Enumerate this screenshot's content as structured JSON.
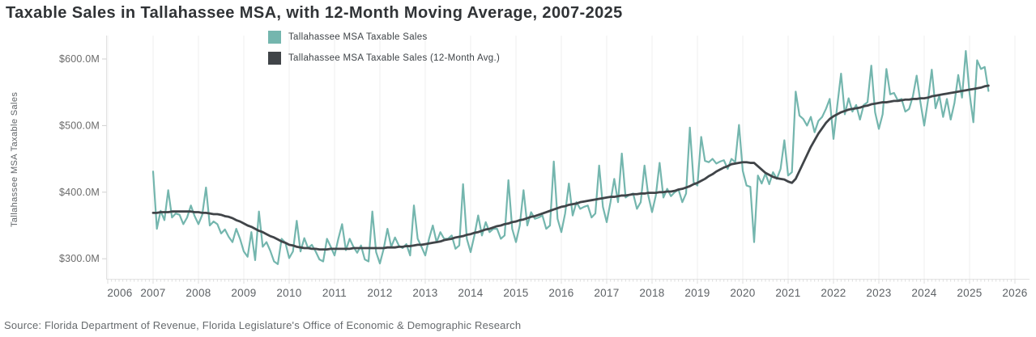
{
  "title": "Taxable Sales in Tallahassee MSA, with 12-Month Moving Average, 2007-2025",
  "source": "Source: Florida Department of Revenue, Florida Legislature's Office of Economic & Demographic Research",
  "legend": {
    "items": [
      {
        "label": "Tallahassee MSA Taxable Sales",
        "color": "#74b6ae"
      },
      {
        "label": "Tallahassee MSA Taxable Sales (12-Month Avg.)",
        "color": "#404448"
      }
    ]
  },
  "y_axis_title": "Tallahassee MSA Taxable Sales",
  "colors": {
    "gridline": "#efefef",
    "axis_line": "#e2e2e2",
    "minor_tick": "#dcdcdc",
    "y_tick": "#cfcfcf",
    "x_label": "#5d6165",
    "y_label": "#6b6b6b"
  },
  "chart_data": {
    "type": "line",
    "title": "Taxable Sales in Tallahassee MSA, with 12-Month Moving Average, 2007-2025",
    "xlabel": "",
    "ylabel": "Tallahassee MSA Taxable Sales",
    "grid": "vertical-only",
    "legend_position": "top-center",
    "x_axis": {
      "start_year": 2006,
      "end_year": 2026,
      "tick_years": [
        2006,
        2007,
        2008,
        2009,
        2010,
        2011,
        2012,
        2013,
        2014,
        2015,
        2016,
        2017,
        2018,
        2019,
        2020,
        2021,
        2022,
        2023,
        2024,
        2025,
        2026
      ],
      "minor_ticks": "monthly"
    },
    "y_axis": {
      "units": "USD millions",
      "ticks": [
        {
          "value": 300,
          "label": "$300.0M"
        },
        {
          "value": 400,
          "label": "$400.0M"
        },
        {
          "value": 500,
          "label": "$500.0M"
        },
        {
          "value": 600,
          "label": "$600.0M"
        }
      ]
    },
    "ylim": [
      270,
      628
    ],
    "series": [
      {
        "name": "Tallahassee MSA Taxable Sales",
        "color": "#74b6ae",
        "stroke_width": 2.2,
        "start_year": 2007,
        "start_month": 1,
        "interval": "monthly",
        "values": [
          431,
          345,
          372,
          358,
          403,
          362,
          368,
          366,
          352,
          362,
          380,
          364,
          352,
          366,
          407,
          350,
          356,
          352,
          338,
          344,
          333,
          325,
          345,
          330,
          311,
          303,
          340,
          298,
          371,
          318,
          325,
          312,
          296,
          292,
          330,
          324,
          301,
          311,
          357,
          311,
          331,
          316,
          321,
          311,
          299,
          296,
          330,
          318,
          305,
          330,
          352,
          313,
          330,
          318,
          309,
          320,
          299,
          296,
          371,
          310,
          293,
          315,
          345,
          318,
          332,
          320,
          316,
          322,
          305,
          380,
          330,
          318,
          305,
          330,
          350,
          325,
          340,
          330,
          330,
          335,
          315,
          320,
          412,
          330,
          310,
          335,
          365,
          335,
          355,
          340,
          345,
          345,
          330,
          335,
          418,
          345,
          325,
          350,
          403,
          350,
          370,
          360,
          362,
          365,
          345,
          350,
          446,
          360,
          340,
          368,
          413,
          365,
          385,
          375,
          378,
          380,
          362,
          368,
          440,
          378,
          355,
          385,
          420,
          385,
          458,
          392,
          396,
          398,
          375,
          385,
          440,
          395,
          370,
          395,
          444,
          392,
          405,
          394,
          400,
          404,
          385,
          398,
          497,
          415,
          410,
          483,
          447,
          445,
          450,
          443,
          446,
          448,
          435,
          450,
          445,
          501,
          432,
          410,
          408,
          325,
          425,
          413,
          428,
          412,
          430,
          420,
          435,
          478,
          425,
          430,
          551,
          515,
          510,
          500,
          513,
          490,
          507,
          513,
          525,
          540,
          480,
          530,
          578,
          517,
          541,
          521,
          531,
          509,
          531,
          535,
          590,
          520,
          495,
          517,
          585,
          547,
          549,
          538,
          540,
          521,
          525,
          544,
          575,
          535,
          500,
          538,
          584,
          526,
          545,
          513,
          540,
          509,
          534,
          576,
          542,
          612,
          548,
          505,
          598,
          585,
          588,
          552
        ]
      },
      {
        "name": "Tallahassee MSA Taxable Sales (12-Month Avg.)",
        "color": "#404448",
        "stroke_width": 2.8,
        "start_year": 2007,
        "start_month": 1,
        "interval": "monthly",
        "values": [
          369,
          369,
          370,
          370,
          370,
          371,
          371,
          371,
          371,
          371,
          371,
          370,
          370,
          369,
          369,
          368,
          367,
          367,
          366,
          364,
          363,
          361,
          358,
          356,
          353,
          350,
          348,
          345,
          342,
          340,
          337,
          334,
          332,
          329,
          326,
          324,
          321,
          320,
          318,
          317,
          316,
          316,
          315,
          315,
          314,
          314,
          314,
          315,
          315,
          315,
          315,
          315,
          315,
          316,
          316,
          316,
          316,
          316,
          316,
          316,
          316,
          316,
          317,
          317,
          317,
          318,
          318,
          319,
          319,
          320,
          321,
          321,
          322,
          323,
          324,
          325,
          326,
          328,
          329,
          330,
          332,
          333,
          334,
          336,
          337,
          339,
          340,
          342,
          344,
          345,
          347,
          349,
          350,
          352,
          353,
          355,
          356,
          358,
          359,
          361,
          363,
          364,
          366,
          368,
          370,
          372,
          374,
          376,
          378,
          379,
          381,
          382,
          383,
          385,
          386,
          387,
          388,
          389,
          390,
          391,
          392,
          393,
          393,
          394,
          395,
          395,
          396,
          397,
          397,
          398,
          398,
          399,
          399,
          399,
          400,
          400,
          401,
          401,
          402,
          404,
          405,
          407,
          409,
          412,
          414,
          417,
          420,
          424,
          427,
          431,
          434,
          437,
          439,
          442,
          443,
          444,
          445,
          445,
          444,
          444,
          439,
          434,
          429,
          426,
          423,
          421,
          420,
          419,
          416,
          414,
          420,
          432,
          444,
          456,
          468,
          478,
          488,
          496,
          504,
          510,
          514,
          517,
          520,
          522,
          524,
          525,
          526,
          527,
          529,
          530,
          532,
          533,
          534,
          535,
          535,
          536,
          537,
          537,
          538,
          539,
          539,
          540,
          540,
          541,
          541,
          542,
          544,
          545,
          546,
          547,
          548,
          549,
          550,
          551,
          552,
          553,
          554,
          555,
          556,
          557,
          559,
          560
        ]
      }
    ]
  }
}
